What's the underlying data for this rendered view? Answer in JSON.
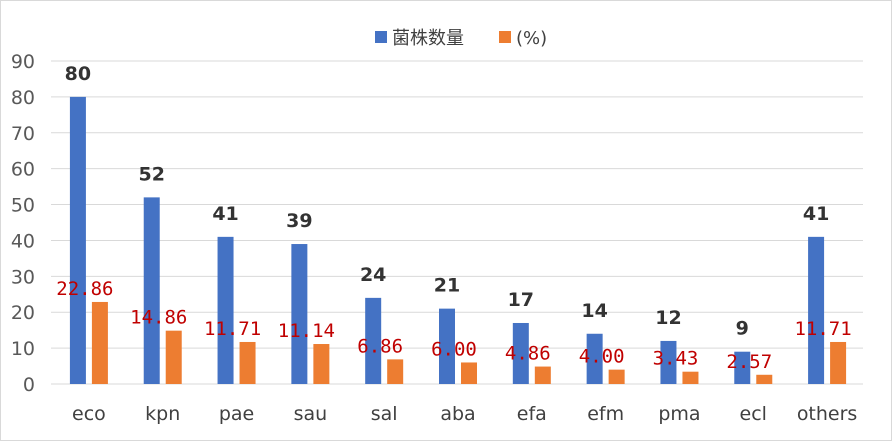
{
  "chart_data": {
    "type": "bar",
    "title": "",
    "xlabel": "",
    "ylabel": "",
    "ylim": [
      0,
      90
    ],
    "yticks": [
      0,
      10,
      20,
      30,
      40,
      50,
      60,
      70,
      80,
      90
    ],
    "grid": true,
    "legend_position": "top-center",
    "categories": [
      "eco",
      "kpn",
      "pae",
      "sau",
      "sal",
      "aba",
      "efa",
      "efm",
      "pma",
      "ecl",
      "others"
    ],
    "series": [
      {
        "name": "菌株数量",
        "color": "#4472c4",
        "label_color": "#333333",
        "values": [
          80,
          52,
          41,
          39,
          24,
          21,
          17,
          14,
          12,
          9,
          41
        ],
        "labels": [
          "80",
          "52",
          "41",
          "39",
          "24",
          "21",
          "17",
          "14",
          "12",
          "9",
          "41"
        ]
      },
      {
        "name": "(%)",
        "color": "#ed7d31",
        "label_color": "#c00000",
        "values": [
          22.86,
          14.86,
          11.71,
          11.14,
          6.86,
          6.0,
          4.86,
          4.0,
          3.43,
          2.57,
          11.71
        ],
        "labels": [
          "22.86",
          "14.86",
          "11.71",
          "11.14",
          "6.86",
          "6.00",
          "4.86",
          "4.00",
          "3.43",
          "2.57",
          "11.71"
        ]
      }
    ]
  }
}
